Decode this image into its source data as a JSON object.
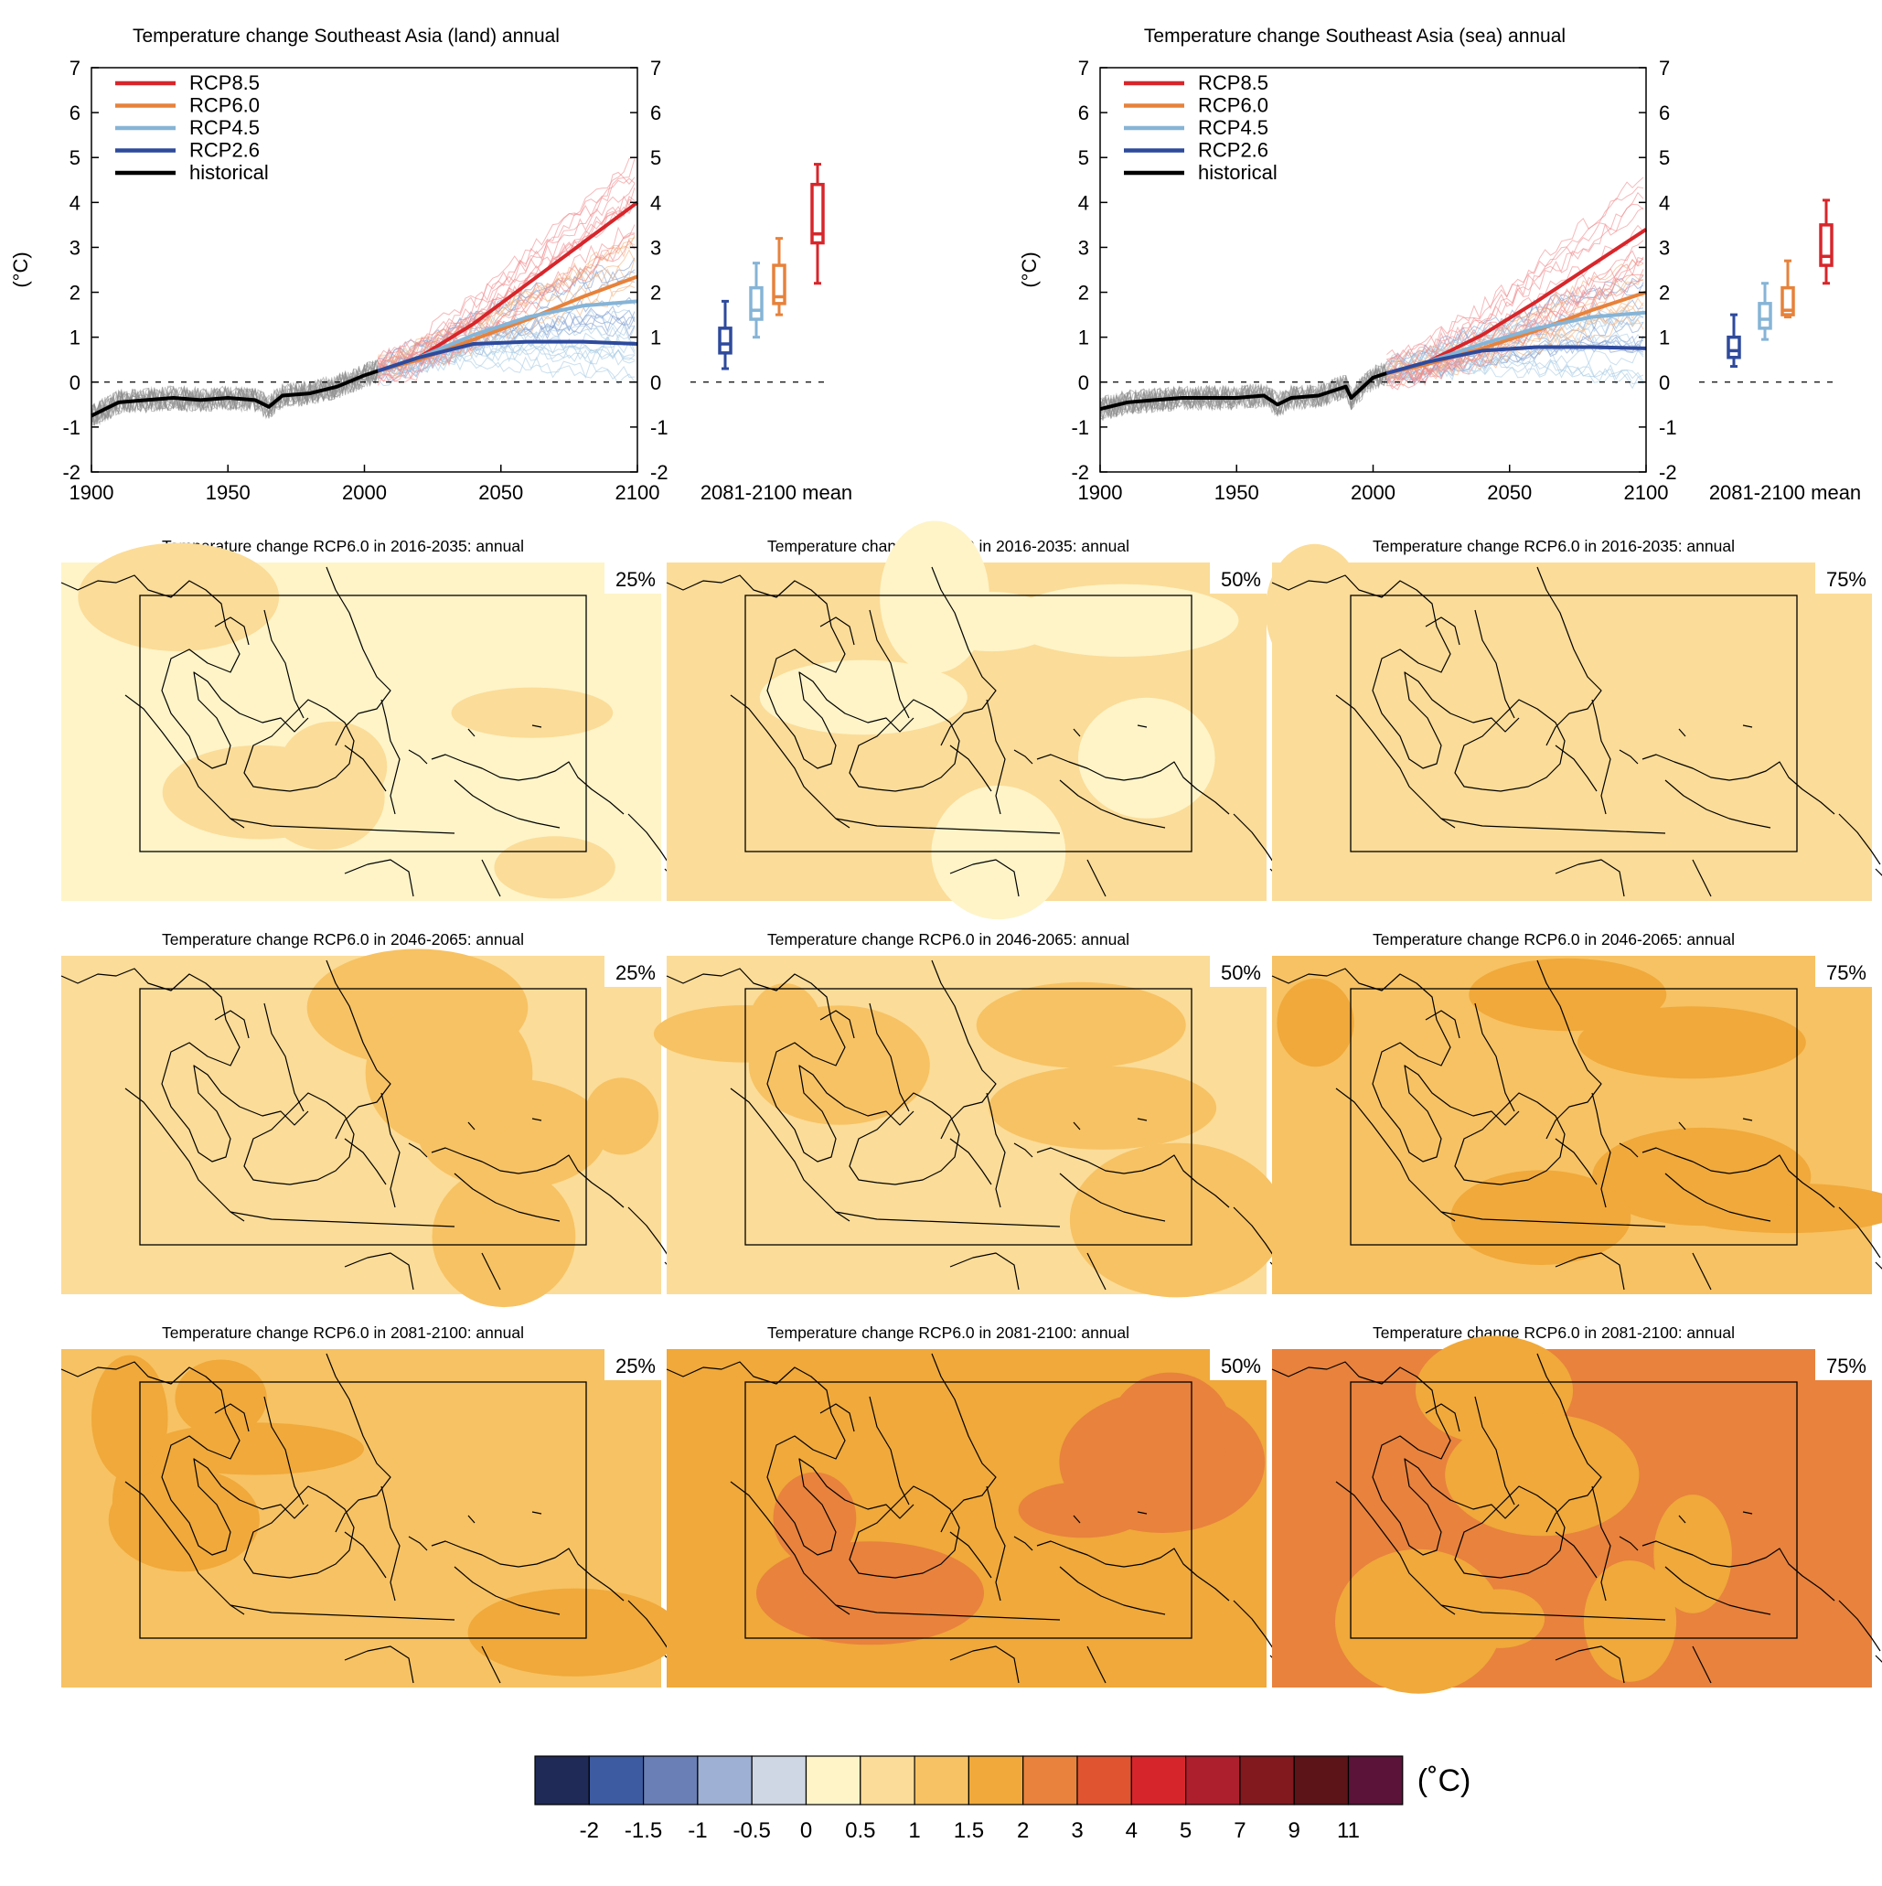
{
  "colors": {
    "rcp85": "#d7262b",
    "rcp60": "#e7823b",
    "rcp45": "#86b4d6",
    "rcp26": "#2e4a9c",
    "historical": "#000000",
    "historical_spread": "#8c8c8c",
    "rcp85_spread": "#f08a8d",
    "rcp60_spread": "#f2b27e",
    "rcp45_spread": "#a9cbe5",
    "rcp26_spread": "#7f9ccf"
  },
  "legend_entries": [
    {
      "key": "rcp85",
      "label": "RCP8.5"
    },
    {
      "key": "rcp60",
      "label": "RCP6.0"
    },
    {
      "key": "rcp45",
      "label": "RCP4.5"
    },
    {
      "key": "rcp26",
      "label": "RCP2.6"
    },
    {
      "key": "historical",
      "label": "historical"
    }
  ],
  "chart_data": [
    {
      "type": "line",
      "title": "Temperature change Southeast Asia (land) annual",
      "ylabel": "(°C)",
      "xlabel": "",
      "xlim": [
        1900,
        2100
      ],
      "ylim": [
        -2,
        7
      ],
      "x_ticks": [
        1900,
        1950,
        2000,
        2050,
        2100
      ],
      "y_ticks": [
        -2,
        -1,
        0,
        1,
        2,
        3,
        4,
        5,
        6,
        7
      ],
      "box_axis_label": "2081-2100 mean",
      "grid": false,
      "legend_position": "top-left",
      "series": [
        {
          "name": "historical",
          "key": "historical",
          "x": [
            1900,
            1910,
            1920,
            1930,
            1940,
            1950,
            1960,
            1965,
            1970,
            1980,
            1990,
            2000,
            2005
          ],
          "values": [
            -0.75,
            -0.45,
            -0.4,
            -0.35,
            -0.4,
            -0.35,
            -0.4,
            -0.55,
            -0.3,
            -0.25,
            -0.1,
            0.15,
            0.25
          ]
        },
        {
          "name": "RCP8.5",
          "key": "rcp85",
          "x": [
            2005,
            2020,
            2040,
            2060,
            2080,
            2100
          ],
          "values": [
            0.25,
            0.55,
            1.3,
            2.2,
            3.1,
            4.0
          ]
        },
        {
          "name": "RCP6.0",
          "key": "rcp60",
          "x": [
            2005,
            2020,
            2040,
            2060,
            2080,
            2100
          ],
          "values": [
            0.25,
            0.5,
            0.95,
            1.4,
            1.9,
            2.35
          ]
        },
        {
          "name": "RCP4.5",
          "key": "rcp45",
          "x": [
            2005,
            2020,
            2040,
            2060,
            2080,
            2100
          ],
          "values": [
            0.25,
            0.55,
            1.05,
            1.45,
            1.7,
            1.8
          ]
        },
        {
          "name": "RCP2.6",
          "key": "rcp26",
          "x": [
            2005,
            2020,
            2040,
            2060,
            2080,
            2100
          ],
          "values": [
            0.25,
            0.55,
            0.85,
            0.9,
            0.9,
            0.85
          ]
        }
      ],
      "boxes": [
        {
          "key": "rcp26",
          "whisker_low": 0.3,
          "q1": 0.65,
          "median": 0.85,
          "q3": 1.2,
          "whisker_high": 1.8
        },
        {
          "key": "rcp45",
          "whisker_low": 1.0,
          "q1": 1.4,
          "median": 1.6,
          "q3": 2.1,
          "whisker_high": 2.65
        },
        {
          "key": "rcp60",
          "whisker_low": 1.5,
          "q1": 1.75,
          "median": 1.9,
          "q3": 2.6,
          "whisker_high": 3.2
        },
        {
          "key": "rcp85",
          "whisker_low": 2.2,
          "q1": 3.1,
          "median": 3.3,
          "q3": 4.4,
          "whisker_high": 4.85
        }
      ]
    },
    {
      "type": "line",
      "title": "Temperature change Southeast Asia (sea) annual",
      "ylabel": "(°C)",
      "xlabel": "",
      "xlim": [
        1900,
        2100
      ],
      "ylim": [
        -2,
        7
      ],
      "x_ticks": [
        1900,
        1950,
        2000,
        2050,
        2100
      ],
      "y_ticks": [
        -2,
        -1,
        0,
        1,
        2,
        3,
        4,
        5,
        6,
        7
      ],
      "box_axis_label": "2081-2100 mean",
      "grid": false,
      "legend_position": "top-left",
      "series": [
        {
          "name": "historical",
          "key": "historical",
          "x": [
            1900,
            1910,
            1920,
            1930,
            1940,
            1950,
            1960,
            1965,
            1970,
            1980,
            1990,
            1992,
            2000,
            2005
          ],
          "values": [
            -0.6,
            -0.45,
            -0.4,
            -0.35,
            -0.35,
            -0.35,
            -0.3,
            -0.5,
            -0.35,
            -0.3,
            -0.1,
            -0.35,
            0.1,
            0.2
          ]
        },
        {
          "name": "RCP8.5",
          "key": "rcp85",
          "x": [
            2005,
            2020,
            2040,
            2060,
            2080,
            2100
          ],
          "values": [
            0.2,
            0.45,
            1.05,
            1.8,
            2.6,
            3.4
          ]
        },
        {
          "name": "RCP6.0",
          "key": "rcp60",
          "x": [
            2005,
            2020,
            2040,
            2060,
            2080,
            2100
          ],
          "values": [
            0.2,
            0.4,
            0.75,
            1.15,
            1.6,
            2.0
          ]
        },
        {
          "name": "RCP4.5",
          "key": "rcp45",
          "x": [
            2005,
            2020,
            2040,
            2060,
            2080,
            2100
          ],
          "values": [
            0.2,
            0.45,
            0.85,
            1.2,
            1.45,
            1.55
          ]
        },
        {
          "name": "RCP2.6",
          "key": "rcp26",
          "x": [
            2005,
            2020,
            2040,
            2060,
            2080,
            2100
          ],
          "values": [
            0.2,
            0.45,
            0.7,
            0.78,
            0.78,
            0.75
          ]
        }
      ],
      "boxes": [
        {
          "key": "rcp26",
          "whisker_low": 0.35,
          "q1": 0.55,
          "median": 0.7,
          "q3": 1.0,
          "whisker_high": 1.5
        },
        {
          "key": "rcp45",
          "whisker_low": 0.95,
          "q1": 1.2,
          "median": 1.4,
          "q3": 1.75,
          "whisker_high": 2.2
        },
        {
          "key": "rcp60",
          "whisker_low": 1.45,
          "q1": 1.5,
          "median": 1.6,
          "q3": 2.1,
          "whisker_high": 2.7
        },
        {
          "key": "rcp85",
          "whisker_low": 2.2,
          "q1": 2.6,
          "median": 2.8,
          "q3": 3.5,
          "whisker_high": 4.05
        }
      ]
    },
    {
      "type": "heatmap",
      "maps": [
        {
          "title": "Temperature change RCP6.0 in 2016-2035: annual",
          "percentile": "25%",
          "base": 0.3,
          "patch": 0.75
        },
        {
          "title": "Temperature change RCP6.0 in 2016-2035: annual",
          "percentile": "50%",
          "base": 0.75,
          "patch": 0.3
        },
        {
          "title": "Temperature change RCP6.0 in 2016-2035: annual",
          "percentile": "75%",
          "base": 0.75,
          "patch": 0.75
        },
        {
          "title": "Temperature change RCP6.0 in 2046-2065: annual",
          "percentile": "25%",
          "base": 0.75,
          "patch": 1.25
        },
        {
          "title": "Temperature change RCP6.0 in 2046-2065: annual",
          "percentile": "50%",
          "base": 0.75,
          "patch": 1.25
        },
        {
          "title": "Temperature change RCP6.0 in 2046-2065: annual",
          "percentile": "75%",
          "base": 1.25,
          "patch": 1.75
        },
        {
          "title": "Temperature change RCP6.0 in 2081-2100: annual",
          "percentile": "25%",
          "base": 1.25,
          "patch": 1.75
        },
        {
          "title": "Temperature change RCP6.0 in 2081-2100: annual",
          "percentile": "50%",
          "base": 1.75,
          "patch": 2.5
        },
        {
          "title": "Temperature change RCP6.0 in 2081-2100: annual",
          "percentile": "75%",
          "base": 2.5,
          "patch": 1.75
        }
      ]
    },
    {
      "type": "colorbar",
      "unit_label": "(˚C)",
      "colors": [
        "#1f2a57",
        "#3d5ba0",
        "#6a7fb5",
        "#9eb0d3",
        "#cfd6e4",
        "#fef4c8",
        "#fbdc98",
        "#f7c263",
        "#f0a93a",
        "#e8823d",
        "#e05530",
        "#d7262b",
        "#ad1f2d",
        "#82191f",
        "#5c1418",
        "#5b1339"
      ],
      "tick_labels": [
        "-2",
        "-1.5",
        "-1",
        "-0.5",
        "0",
        "0.5",
        "1",
        "1.5",
        "2",
        "3",
        "4",
        "5",
        "7",
        "9",
        "11"
      ]
    }
  ]
}
